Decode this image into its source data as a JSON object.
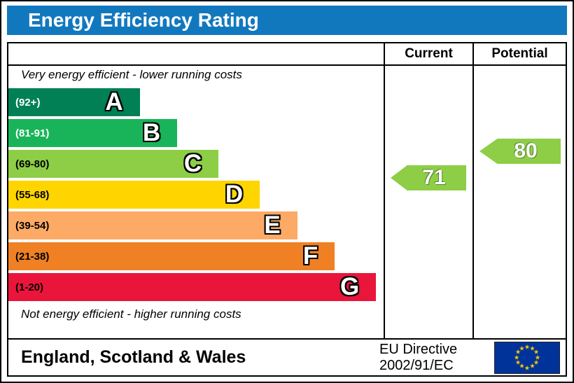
{
  "title": "Energy Efficiency Rating",
  "colors": {
    "title_bg": "#1278be"
  },
  "header": {
    "current": "Current",
    "potential": "Potential"
  },
  "notes": {
    "top": "Very energy efficient - lower running costs",
    "bottom": "Not energy efficient - higher running costs"
  },
  "bands": [
    {
      "letter": "A",
      "range": "(92+)",
      "color": "#008054",
      "text_color": "#ffffff",
      "width_pct": 35
    },
    {
      "letter": "B",
      "range": "(81-91)",
      "color": "#19b459",
      "text_color": "#ffffff",
      "width_pct": 45
    },
    {
      "letter": "C",
      "range": "(69-80)",
      "color": "#8dce46",
      "text_color": "#000000",
      "width_pct": 56
    },
    {
      "letter": "D",
      "range": "(55-68)",
      "color": "#ffd500",
      "text_color": "#000000",
      "width_pct": 67
    },
    {
      "letter": "E",
      "range": "(39-54)",
      "color": "#fcaa65",
      "text_color": "#000000",
      "width_pct": 77
    },
    {
      "letter": "F",
      "range": "(21-38)",
      "color": "#ef8023",
      "text_color": "#000000",
      "width_pct": 87
    },
    {
      "letter": "G",
      "range": "(1-20)",
      "color": "#e9153b",
      "text_color": "#000000",
      "width_pct": 98
    }
  ],
  "ratings": {
    "current": {
      "value": "71",
      "color": "#8dce46"
    },
    "potential": {
      "value": "80",
      "color": "#8dce46"
    }
  },
  "footer": {
    "region": "England, Scotland & Wales",
    "directive_line1": "EU Directive",
    "directive_line2": "2002/91/EC"
  },
  "chart_data": {
    "type": "bar",
    "title": "Energy Efficiency Rating",
    "categories": [
      "A (92+)",
      "B (81-91)",
      "C (69-80)",
      "D (55-68)",
      "E (39-54)",
      "F (21-38)",
      "G (1-20)"
    ],
    "band_colors": [
      "#008054",
      "#19b459",
      "#8dce46",
      "#ffd500",
      "#fcaa65",
      "#ef8023",
      "#e9153b"
    ],
    "series": [
      {
        "name": "Current",
        "value": 71,
        "band": "C"
      },
      {
        "name": "Potential",
        "value": 80,
        "band": "C"
      }
    ],
    "xlabel": "",
    "ylabel": "",
    "top_annotation": "Very energy efficient - lower running costs",
    "bottom_annotation": "Not energy efficient - higher running costs",
    "footer_left": "England, Scotland & Wales",
    "footer_right": "EU Directive 2002/91/EC"
  }
}
